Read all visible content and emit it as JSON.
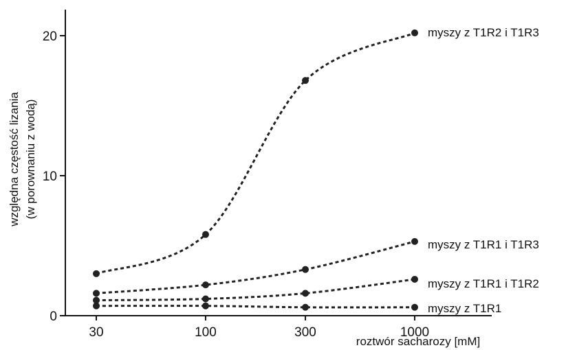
{
  "chart_data": {
    "type": "line",
    "title": "",
    "xlabel": "roztwór sacharozy [mM]",
    "ylabel_line1": "względna częstość lizania",
    "ylabel_line2": "(w porownaniu z wodą)",
    "x_scale": "log",
    "x": [
      30,
      100,
      300,
      1000
    ],
    "x_tick_labels": [
      "30",
      "100",
      "300",
      "1000"
    ],
    "y_ticks": [
      0,
      10,
      20
    ],
    "y_tick_labels": [
      "0",
      "10",
      "20"
    ],
    "ylim": [
      0,
      21.6
    ],
    "grid": false,
    "legend": "none (series labeled at right end of each line)",
    "series": [
      {
        "name": "myszy z T1R2 i T1R3",
        "values": [
          3.0,
          5.8,
          16.8,
          20.2
        ]
      },
      {
        "name": "myszy z T1R1 i T1R3",
        "values": [
          1.6,
          2.2,
          3.3,
          5.3
        ]
      },
      {
        "name": "myszy z T1R1 i T1R2",
        "values": [
          1.1,
          1.2,
          1.6,
          2.6
        ]
      },
      {
        "name": "myszy z T1R1",
        "values": [
          0.7,
          0.7,
          0.6,
          0.6
        ]
      }
    ],
    "line_color": "#222222",
    "line_style": "dashed",
    "marker": "filled-circle"
  }
}
